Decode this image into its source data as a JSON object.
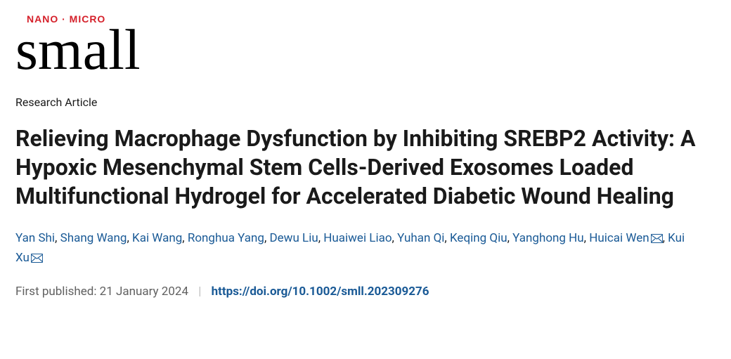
{
  "logo": {
    "nano_micro_label": "NANO · MICRO",
    "wordmark": "small",
    "nano_color": "#d5202a",
    "text_color": "#000000"
  },
  "article_type": "Research Article",
  "title": "Relieving Macrophage Dysfunction by Inhibiting SREBP2 Activity: A Hypoxic Mesenchymal Stem Cells-Derived Exosomes Loaded Multifunctional Hydrogel for Accelerated Diabetic Wound Healing",
  "authors": [
    {
      "name": "Yan Shi",
      "corresponding": false
    },
    {
      "name": "Shang Wang",
      "corresponding": false
    },
    {
      "name": "Kai Wang",
      "corresponding": false
    },
    {
      "name": "Ronghua Yang",
      "corresponding": false
    },
    {
      "name": "Dewu Liu",
      "corresponding": false
    },
    {
      "name": "Huaiwei Liao",
      "corresponding": false
    },
    {
      "name": "Yuhan Qi",
      "corresponding": false
    },
    {
      "name": "Keqing Qiu",
      "corresponding": false
    },
    {
      "name": "Yanghong Hu",
      "corresponding": false
    },
    {
      "name": "Huicai Wen",
      "corresponding": true
    },
    {
      "name": "Kui Xu",
      "corresponding": true
    }
  ],
  "corresponding_icon_color": "#1a5a96",
  "meta": {
    "first_published_label": "First published:",
    "first_published_date": "21 January 2024",
    "doi_text": "https://doi.org/10.1002/smll.202309276",
    "link_color": "#1a5a96"
  }
}
